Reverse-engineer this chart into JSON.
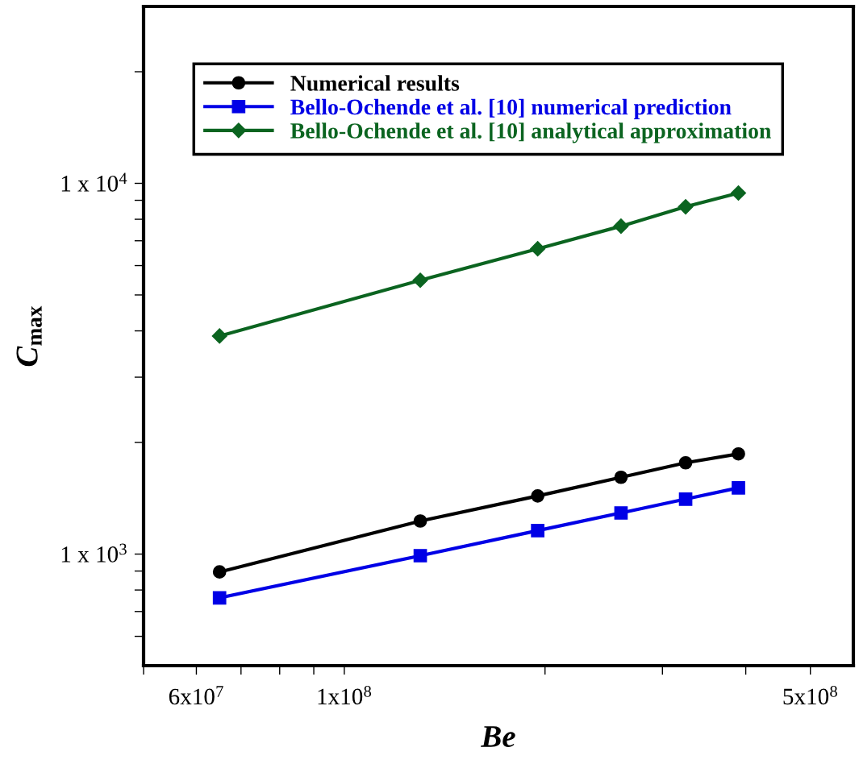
{
  "chart_data": {
    "type": "line",
    "xlabel": "Be",
    "ylabel": "C$_{max}$",
    "log": "xy",
    "grid": false,
    "legend": "top left",
    "x": [
      65000000,
      130000000,
      195000000,
      260000000,
      325000000,
      390000000
    ],
    "xlim": [
      50000000,
      580000000
    ],
    "xticks": [
      {
        "value": 50000000,
        "label": null
      },
      {
        "value": 60000000,
        "label": "6x10$^{7}$"
      },
      {
        "value": 70000000,
        "label": null
      },
      {
        "value": 80000000,
        "label": null
      },
      {
        "value": 90000000,
        "label": null
      },
      {
        "value": 100000000,
        "label": "1x10$^{8}$"
      },
      {
        "value": 200000000,
        "label": null
      },
      {
        "value": 300000000,
        "label": null
      },
      {
        "value": 400000000,
        "label": null
      },
      {
        "value": 500000000,
        "label": "5x10$^{8}$"
      }
    ],
    "ylim": [
      500,
      30000
    ],
    "yticks": [
      {
        "value": 600,
        "label": null
      },
      {
        "value": 700,
        "label": null
      },
      {
        "value": 800,
        "label": null
      },
      {
        "value": 900,
        "label": null
      },
      {
        "value": 1000,
        "label": "1 x 10$^{3}$"
      },
      {
        "value": 2000,
        "label": null
      },
      {
        "value": 3000,
        "label": null
      },
      {
        "value": 4000,
        "label": null
      },
      {
        "value": 5000,
        "label": null
      },
      {
        "value": 6000,
        "label": null
      },
      {
        "value": 7000,
        "label": null
      },
      {
        "value": 8000,
        "label": null
      },
      {
        "value": 9000,
        "label": null
      },
      {
        "value": 10000,
        "label": "1 x 10$^{4}$"
      },
      {
        "value": 20000,
        "label": null
      }
    ],
    "series": [
      {
        "name": "Numerical results",
        "color": "#000000",
        "marker": "circle",
        "values": [
          895,
          1228,
          1435,
          1611,
          1763,
          1863
        ]
      },
      {
        "name": "Bello-Ochende et al. [10] numerical prediction",
        "color": "#0000e6",
        "marker": "square",
        "values": [
          762,
          990,
          1157,
          1291,
          1407,
          1509
        ]
      },
      {
        "name": "Bello-Ochende et al. [10] analytical approximation",
        "color": "#0b6420",
        "marker": "diamond",
        "values": [
          3875,
          5478,
          6661,
          7664,
          8646,
          9418
        ]
      }
    ]
  }
}
